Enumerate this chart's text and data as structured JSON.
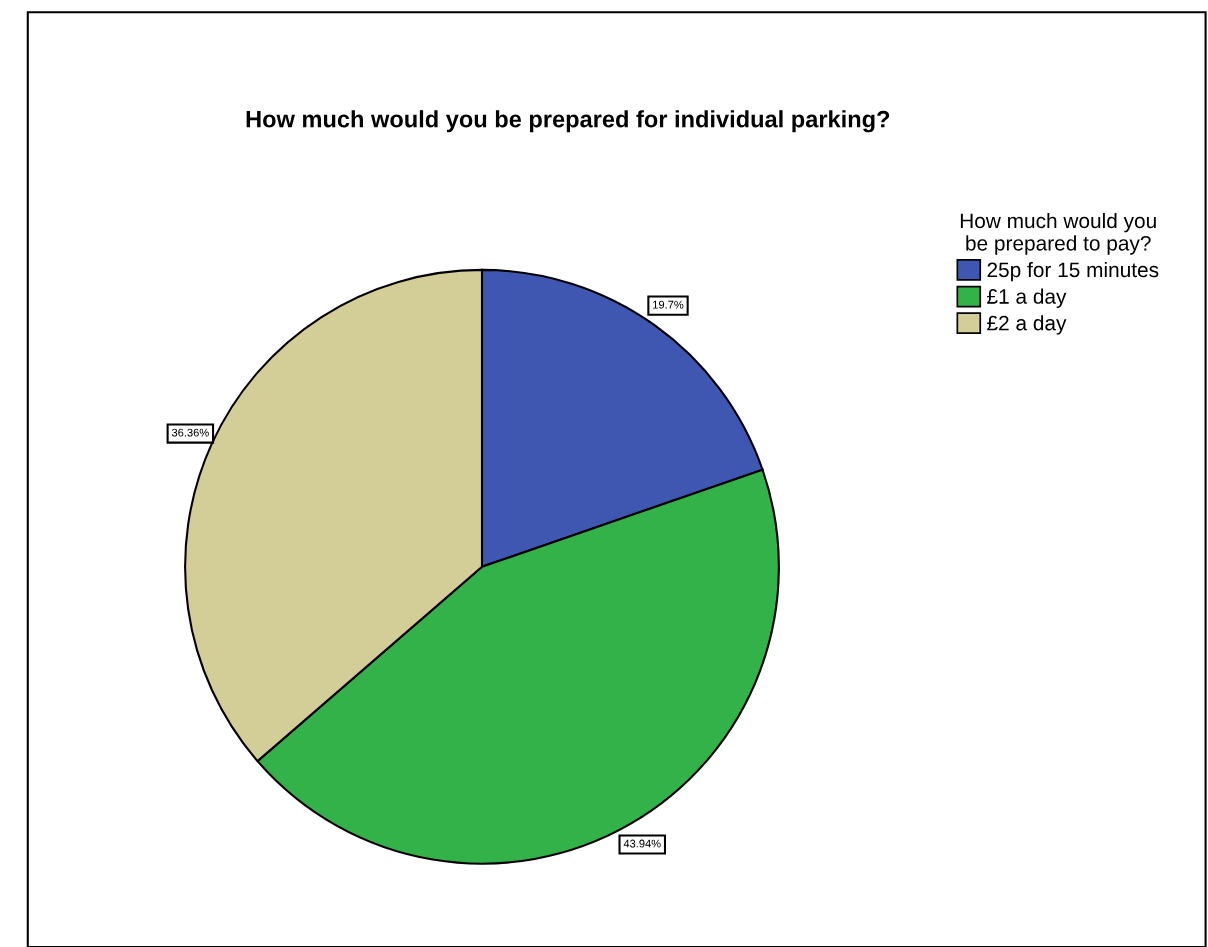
{
  "chart_data": {
    "type": "pie",
    "title": "How much would you be prepared for individual parking?",
    "legend_title": "How much would you\nbe prepared to pay?",
    "categories": [
      "25p for 15 minutes",
      "£1 a day",
      "£2 a day"
    ],
    "values": [
      19.7,
      43.94,
      36.36
    ],
    "value_labels": [
      "19.7%",
      "43.94%",
      "36.36%"
    ],
    "colors": [
      "#3f57b0",
      "#33b249",
      "#d3ce98"
    ],
    "legend": "top right"
  }
}
